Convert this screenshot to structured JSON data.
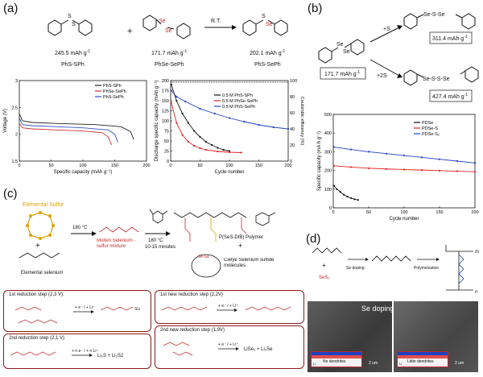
{
  "panel_labels": {
    "a": "(a)",
    "b": "(b)",
    "c": "(c)",
    "d": "(d)"
  },
  "panel_a": {
    "reaction": {
      "reactant1": {
        "cap": "245.5 mAh g",
        "name": "PhS-SPh"
      },
      "plus": "+",
      "reactant2": {
        "cap": "171.7 mAh g",
        "name": "PhSe-SePh"
      },
      "condition": "R.T.",
      "product": {
        "cap": "202.1 mAh g",
        "name": "PhS-SePh"
      },
      "sup": "-1"
    },
    "atoms": {
      "S": "S",
      "Se": "Se"
    }
  },
  "panel_b": {
    "start": {
      "cap": "171.7 mAh g",
      "sup": "-1"
    },
    "arrow1": "+S",
    "arrow2": "+2S",
    "prod1": {
      "cap": "311.4 mAh g",
      "sup": "-1"
    },
    "prod2": {
      "cap": "427.4 mAh g",
      "sup": "-1"
    }
  },
  "panel_c": {
    "elemental_sulfur": "Elemental Sulfur",
    "elemental_selenium": "Elemental selenium",
    "temp1": "180 °C",
    "molten": "Molten Selenium -\nsulfur mixture",
    "temp2": "180 °C",
    "time": "10-15 minutes",
    "polymer": "P(SeS-DIB) Polymer",
    "plus": "+",
    "cyclic": "Cielye Selenium sulfide\nmolecules",
    "steps": [
      {
        "title": "1st reduction step (2,3 V):",
        "eq": "+ e⁻ / + Li⁺"
      },
      {
        "title": "1st new reduction step (2,2V)",
        "eq": "+ e⁻ / + Li⁺"
      },
      {
        "title": "2nd reduction step (2,1 V)",
        "eq": "+ n e⁻ / + n Li⁺",
        "products": "Li₂S + Li₂S2"
      },
      {
        "title": "2nd new reduction step (1,9V)",
        "eq": "+ e⁻ / + Li⁺",
        "products": "LiSe₂ + Li₂Se"
      }
    ]
  },
  "panel_d": {
    "se_label": "SeS₂",
    "plus": "+",
    "arrow1": "Se doping",
    "arrow2": "Polymeization",
    "m": "m",
    "n": "n",
    "sem_title": "Se doping",
    "no_dendrites": "No dendrites",
    "little_dendrites": "Little dendrites",
    "scale": "2 um",
    "li": "Li"
  },
  "chart_data": [
    {
      "id": "a-voltage",
      "type": "line",
      "xlabel": "Specific capacity (mAh g⁻¹)",
      "ylabel": "Voltage (V)",
      "xlim": [
        0,
        200
      ],
      "ylim": [
        1.5,
        3.0
      ],
      "xticks": [
        0,
        50,
        100,
        150,
        200
      ],
      "yticks": [
        1.5,
        2.0,
        2.5,
        3.0
      ],
      "legend": "top-right",
      "series": [
        {
          "name": "PhS-SPh",
          "color": "#222222",
          "x": [
            0,
            5,
            20,
            60,
            120,
            160,
            175,
            180
          ],
          "y": [
            2.38,
            2.25,
            2.22,
            2.2,
            2.18,
            2.14,
            2.05,
            1.9
          ]
        },
        {
          "name": "PhSe-SePh",
          "color": "#d33030",
          "x": [
            0,
            5,
            20,
            60,
            100,
            130,
            140,
            145
          ],
          "y": [
            2.2,
            2.12,
            2.1,
            2.08,
            2.06,
            2.03,
            1.95,
            1.8
          ]
        },
        {
          "name": "PhS-SePh",
          "color": "#3050c8",
          "x": [
            0,
            5,
            20,
            60,
            100,
            140,
            150,
            155
          ],
          "y": [
            2.3,
            2.18,
            2.16,
            2.14,
            2.12,
            2.08,
            2.0,
            1.85
          ]
        }
      ]
    },
    {
      "id": "a-cycling",
      "type": "scatter",
      "xlabel": "Cycle number",
      "ylabel": "Discharge specific capacity (mAh g⁻¹)",
      "ylabel2": "Coulombic efficiency (%)",
      "xlim": [
        0,
        200
      ],
      "ylim": [
        0,
        200
      ],
      "ylim2": [
        0,
        100
      ],
      "xticks": [
        0,
        50,
        100,
        150,
        200
      ],
      "yticks": [
        0,
        25,
        50,
        75,
        100,
        125,
        150,
        175,
        200
      ],
      "yticks2": [
        0,
        20,
        40,
        60,
        80,
        100
      ],
      "legend": "top-right",
      "series": [
        {
          "name": "0.5 M PhS-SPh",
          "color": "#111111",
          "x": [
            1,
            10,
            20,
            30,
            40,
            50,
            60,
            70,
            80,
            90,
            100
          ],
          "y": [
            190,
            150,
            118,
            95,
            75,
            60,
            48,
            40,
            33,
            28,
            25
          ]
        },
        {
          "name": "0.5 M PhSe-SePh",
          "color": "#e02020",
          "x": [
            1,
            10,
            20,
            30,
            40,
            50,
            60,
            80,
            100,
            120
          ],
          "y": [
            145,
            95,
            65,
            48,
            38,
            32,
            28,
            24,
            22,
            21
          ]
        },
        {
          "name": "0.5 M PhS-SePh",
          "color": "#2040c0",
          "x": [
            1,
            10,
            25,
            50,
            75,
            100,
            125,
            150,
            175,
            200
          ],
          "y": [
            175,
            160,
            148,
            130,
            118,
            107,
            98,
            90,
            84,
            80
          ]
        }
      ]
    },
    {
      "id": "b-cycling",
      "type": "scatter",
      "xlabel": "Cycle number",
      "ylabel": "Specific capacity (mA h g⁻¹)",
      "xlim": [
        0,
        200
      ],
      "ylim": [
        0,
        500
      ],
      "xticks": [
        0,
        50,
        100,
        150,
        200
      ],
      "yticks": [
        0,
        100,
        200,
        300,
        400,
        500
      ],
      "legend": "top-right",
      "series": [
        {
          "name": "PDSe",
          "color": "#111111",
          "x": [
            1,
            5,
            10,
            15,
            20,
            25,
            30,
            35
          ],
          "y": [
            118,
            100,
            85,
            70,
            60,
            52,
            46,
            42
          ]
        },
        {
          "name": "PDSe-S",
          "color": "#e02020",
          "x": [
            1,
            25,
            50,
            75,
            100,
            125,
            150,
            175,
            200
          ],
          "y": [
            225,
            218,
            212,
            208,
            205,
            202,
            199,
            196,
            193
          ]
        },
        {
          "name": "PDSe-S₂",
          "color": "#2040c0",
          "x": [
            1,
            25,
            50,
            75,
            100,
            125,
            150,
            175,
            200
          ],
          "y": [
            325,
            312,
            300,
            290,
            280,
            270,
            260,
            250,
            240
          ]
        }
      ]
    }
  ]
}
